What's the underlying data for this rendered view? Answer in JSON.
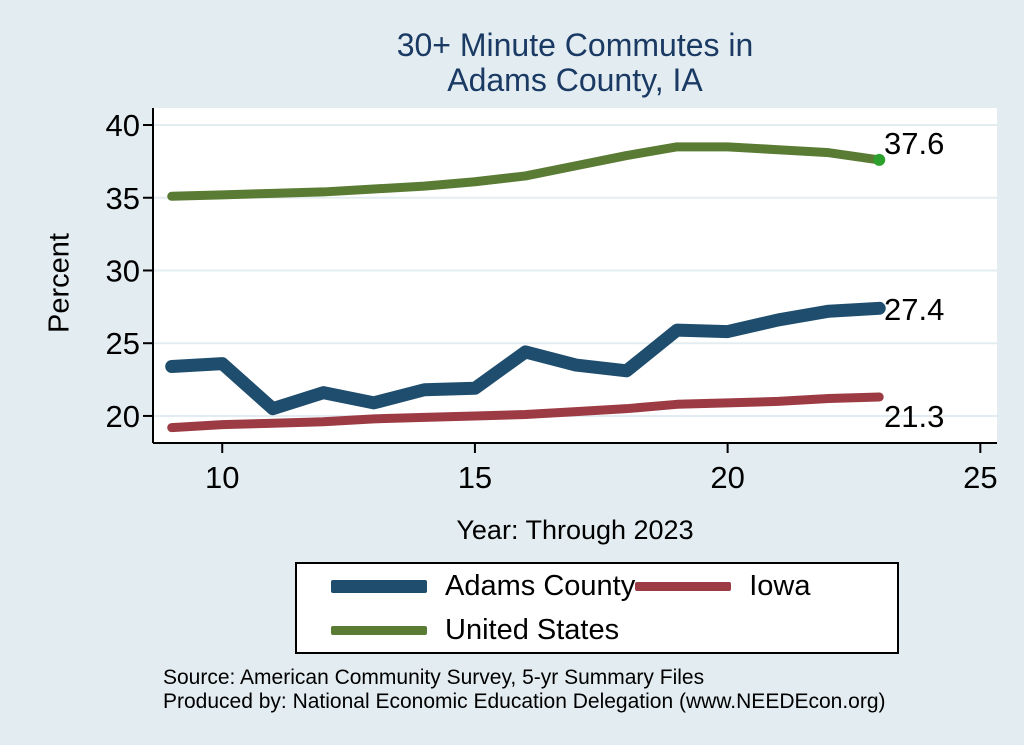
{
  "page": {
    "background": "#e3edf1"
  },
  "title": {
    "line1": "30+ Minute Commutes in",
    "line2": "Adams County, IA",
    "color": "#1a3a64"
  },
  "chart_data": {
    "type": "line",
    "title": "30+ Minute Commutes in Adams County, IA",
    "xlabel": "Year: Through 2023",
    "ylabel": "Percent",
    "x": [
      9,
      10,
      11,
      12,
      13,
      14,
      15,
      16,
      17,
      18,
      19,
      20,
      21,
      22,
      23
    ],
    "x_ticks": [
      10,
      15,
      20,
      25
    ],
    "y_ticks": [
      20,
      25,
      30,
      35,
      40
    ],
    "x_range": [
      8.63,
      25.33
    ],
    "y_range": [
      18.14,
      41.17
    ],
    "grid": "horizontal",
    "gridline_color": "#e3edf1",
    "plot_bg": "#ffffff",
    "axis_color": "#000000",
    "legend_position": "bottom",
    "series": [
      {
        "name": "Adams County",
        "color": "#1f4d6d",
        "line_width": 13,
        "values": [
          23.4,
          23.6,
          20.5,
          21.6,
          20.9,
          21.8,
          21.9,
          24.4,
          23.5,
          23.1,
          25.9,
          25.8,
          26.6,
          27.2,
          27.4
        ],
        "end_label": "27.4"
      },
      {
        "name": "Iowa",
        "color": "#9d3b44",
        "line_width": 9,
        "values": [
          19.2,
          19.4,
          19.5,
          19.6,
          19.8,
          19.9,
          20.0,
          20.1,
          20.3,
          20.5,
          20.8,
          20.9,
          21.0,
          21.2,
          21.3
        ],
        "end_label": "21.3"
      },
      {
        "name": "United States",
        "color": "#5a7b33",
        "line_width": 9,
        "values": [
          35.1,
          35.2,
          35.3,
          35.4,
          35.6,
          35.8,
          36.1,
          36.5,
          37.2,
          37.9,
          38.5,
          38.5,
          38.3,
          38.1,
          37.6
        ],
        "end_label": "37.6",
        "end_marker_color": "#2d9f2d"
      }
    ]
  },
  "footer": {
    "source_line": "Source: American Community Survey, 5-yr Summary Files",
    "produced_line": "Produced by: National Economic Education Delegation (www.NEEDEcon.org)"
  }
}
